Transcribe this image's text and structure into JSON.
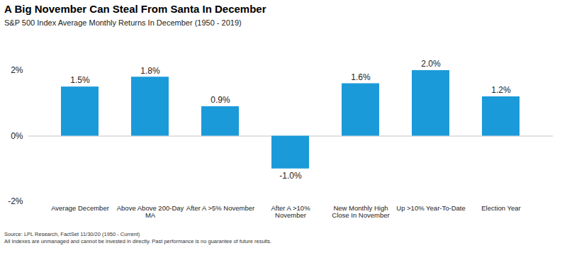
{
  "chart_data": {
    "type": "bar",
    "title": "A Big November Can Steal From Santa In December",
    "subtitle": "S&P 500 Index Average Monthly Returns In December (1950 - 2019)",
    "categories": [
      "Average December",
      "Above Above 200-Day MA",
      "After A >5% November",
      "After A >10% November",
      "New Monthly High Close In November",
      "Up >10% Year-To-Date",
      "Election Year"
    ],
    "values": [
      1.5,
      1.8,
      0.9,
      -1.0,
      1.6,
      2.0,
      1.2
    ],
    "value_labels": [
      "1.5%",
      "1.8%",
      "0.9%",
      "-1.0%",
      "1.6%",
      "2.0%",
      "1.2%"
    ],
    "data_labels": true,
    "color": "#1b9ad9",
    "ylim": [
      -2,
      2
    ],
    "yticks": [
      {
        "value": -2,
        "label": "-2%"
      },
      {
        "value": 0,
        "label": "0%"
      },
      {
        "value": 2,
        "label": "2%"
      }
    ],
    "grid": false,
    "notes": [
      "Source: LPL Research, FactSet 11/30/20 (1950 - Current)",
      "All Indexes are unmanaged and cannot be invested in directly. Past performance is no guarantee of future results."
    ]
  }
}
